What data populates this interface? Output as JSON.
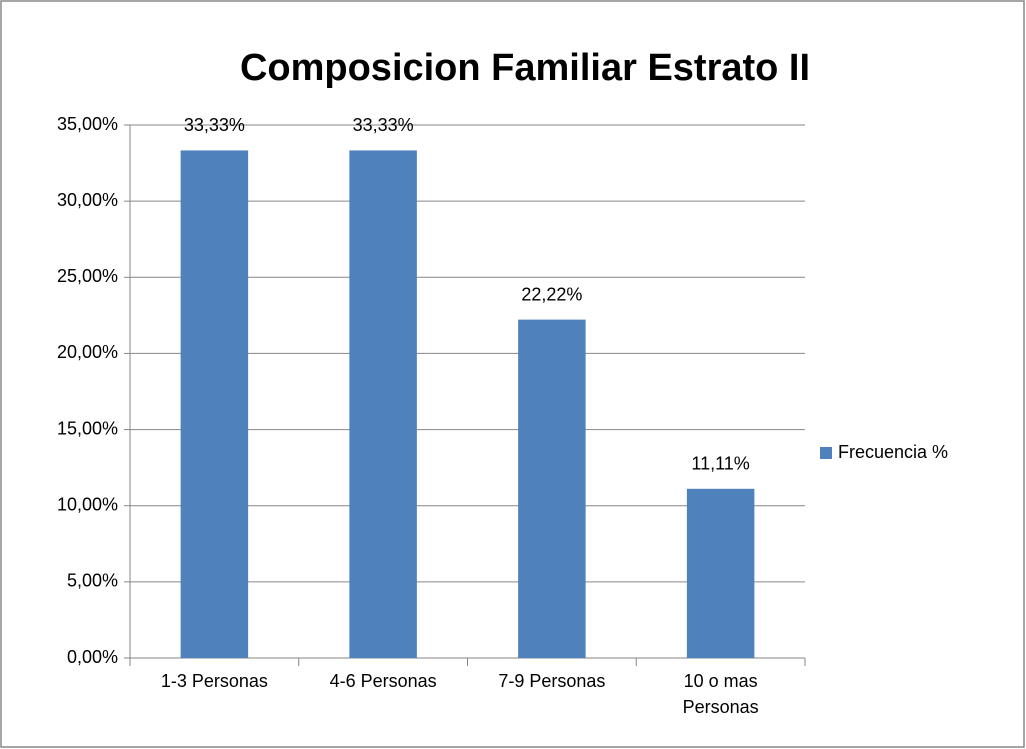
{
  "chart_data": {
    "type": "bar",
    "title": "Composicion Familiar Estrato II",
    "categories": [
      "1-3 Personas",
      "4-6 Personas",
      "7-9 Personas",
      "10 o mas Personas"
    ],
    "series": [
      {
        "name": "Frecuencia %",
        "color": "#4f81bd",
        "values": [
          33.33,
          33.33,
          22.22,
          11.11
        ],
        "value_labels": [
          "33,33%",
          "33,33%",
          "22,22%",
          "11,11%"
        ]
      }
    ],
    "ylim": [
      0,
      35
    ],
    "yticks": [
      {
        "value": 0,
        "label": "0,00%"
      },
      {
        "value": 5,
        "label": "5,00%"
      },
      {
        "value": 10,
        "label": "10,00%"
      },
      {
        "value": 15,
        "label": "15,00%"
      },
      {
        "value": 20,
        "label": "20,00%"
      },
      {
        "value": 25,
        "label": "25,00%"
      },
      {
        "value": 30,
        "label": "30,00%"
      },
      {
        "value": 35,
        "label": "35,00%"
      }
    ],
    "grid": true,
    "legend": "right"
  }
}
